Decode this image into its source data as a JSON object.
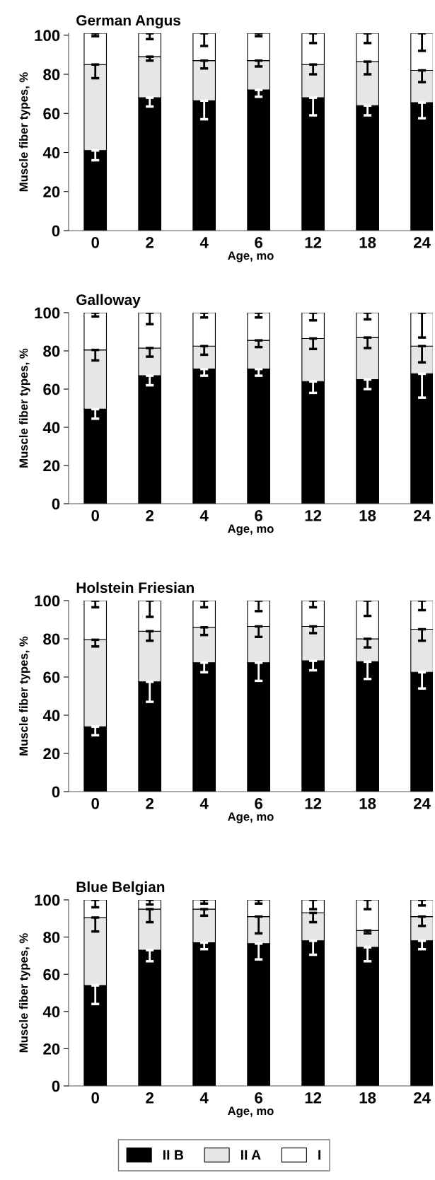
{
  "chart_data": [
    {
      "type": "bar",
      "title": "German Angus",
      "xlabel": "Age, mo",
      "ylabel": "Muscle fiber types, %",
      "categories": [
        "0",
        "2",
        "4",
        "6",
        "12",
        "18",
        "24"
      ],
      "stacked": true,
      "ylim": [
        0,
        101
      ],
      "yticks": [
        0,
        20,
        40,
        60,
        80,
        100
      ],
      "legend": "bottom",
      "series": [
        {
          "name": "II B",
          "color": "#000000",
          "values": [
            41,
            68,
            66.5,
            72,
            68,
            64,
            65.5
          ],
          "errors": [
            [
              36,
              41
            ],
            [
              63.5,
              68
            ],
            [
              57,
              66.5
            ],
            [
              68.5,
              72
            ],
            [
              59,
              68
            ],
            [
              59,
              64
            ],
            [
              57.5,
              65.5
            ]
          ]
        },
        {
          "name": "II A",
          "color": "#e6e6e6",
          "values": [
            44,
            21,
            20.5,
            15,
            17,
            22.5,
            16.5
          ],
          "errors": [
            [
              78,
              85
            ],
            [
              87,
              89
            ],
            [
              83,
              87
            ],
            [
              84,
              87
            ],
            [
              80,
              85
            ],
            [
              80,
              86.5
            ],
            [
              76,
              82
            ]
          ]
        },
        {
          "name": "I",
          "color": "#ffffff",
          "values": [
            16,
            12,
            14,
            14,
            16,
            14.5,
            19
          ],
          "errors": [
            [
              99.5,
              101
            ],
            [
              98,
              101
            ],
            [
              94.5,
              101
            ],
            [
              99.5,
              101
            ],
            [
              96,
              101
            ],
            [
              96,
              101
            ],
            [
              92,
              101
            ]
          ]
        }
      ]
    },
    {
      "type": "bar",
      "title": "Galloway",
      "xlabel": "Age, mo",
      "ylabel": "Muscle fiber types, %",
      "categories": [
        "0",
        "2",
        "4",
        "6",
        "12",
        "18",
        "24"
      ],
      "stacked": true,
      "ylim": [
        0,
        100
      ],
      "yticks": [
        0,
        20,
        40,
        60,
        80,
        100
      ],
      "series": [
        {
          "color": "#000000",
          "values": [
            49.5,
            67,
            70.5,
            70.5,
            64,
            65,
            68
          ],
          "errors": [
            [
              44.5,
              49.5
            ],
            [
              62,
              67
            ],
            [
              67,
              70.5
            ],
            [
              67,
              70.5
            ],
            [
              58,
              64
            ],
            [
              60,
              65
            ],
            [
              55.5,
              68
            ]
          ]
        },
        {
          "color": "#e6e6e6",
          "values": [
            31,
            14.5,
            12,
            15,
            22.5,
            22,
            14.5
          ],
          "errors": [
            [
              75,
              80.5
            ],
            [
              77,
              81.5
            ],
            [
              78,
              82.5
            ],
            [
              82,
              85.5
            ],
            [
              81,
              86.5
            ],
            [
              81.5,
              87
            ],
            [
              74,
              82.5
            ]
          ]
        },
        {
          "color": "#ffffff",
          "values": [
            19.5,
            18.5,
            17.5,
            14.5,
            13.5,
            13,
            17.5
          ],
          "errors": [
            [
              98,
              100
            ],
            [
              94,
              100
            ],
            [
              97.5,
              100
            ],
            [
              97.5,
              100
            ],
            [
              96,
              100
            ],
            [
              96.5,
              100
            ],
            [
              87,
              100
            ]
          ]
        }
      ]
    },
    {
      "type": "bar",
      "title": "Holstein Friesian",
      "xlabel": "Age, mo",
      "ylabel": "Muscle fiber types, %",
      "categories": [
        "0",
        "2",
        "4",
        "6",
        "12",
        "18",
        "24"
      ],
      "stacked": true,
      "ylim": [
        0,
        100
      ],
      "yticks": [
        0,
        20,
        40,
        60,
        80,
        100
      ],
      "series": [
        {
          "color": "#000000",
          "values": [
            34,
            57.5,
            67.5,
            67.5,
            68.5,
            68,
            62.5
          ],
          "errors": [
            [
              29.5,
              34
            ],
            [
              47,
              57.5
            ],
            [
              62.5,
              67.5
            ],
            [
              58,
              67.5
            ],
            [
              63.5,
              68.5
            ],
            [
              59,
              68
            ],
            [
              54,
              62.5
            ]
          ]
        },
        {
          "color": "#e6e6e6",
          "values": [
            45.5,
            26.5,
            18.5,
            19,
            18,
            12,
            22.5
          ],
          "errors": [
            [
              76,
              79.5
            ],
            [
              79,
              84
            ],
            [
              82,
              86
            ],
            [
              81,
              86.5
            ],
            [
              83,
              86.5
            ],
            [
              75.5,
              80
            ],
            [
              79,
              85
            ]
          ]
        },
        {
          "color": "#ffffff",
          "values": [
            20.5,
            16,
            14,
            13.5,
            13.5,
            20,
            15
          ],
          "errors": [
            [
              96.5,
              100
            ],
            [
              91.5,
              100
            ],
            [
              96.5,
              100
            ],
            [
              94.5,
              100
            ],
            [
              96.5,
              100
            ],
            [
              92,
              100
            ],
            [
              95,
              100
            ]
          ]
        }
      ]
    },
    {
      "type": "bar",
      "title": "Blue Belgian",
      "xlabel": "Age, mo",
      "ylabel": "Muscle fiber types, %",
      "categories": [
        "0",
        "2",
        "4",
        "6",
        "12",
        "18",
        "24"
      ],
      "stacked": true,
      "ylim": [
        0,
        100
      ],
      "yticks": [
        0,
        20,
        40,
        60,
        80,
        100
      ],
      "series": [
        {
          "color": "#000000",
          "values": [
            54,
            73,
            77,
            76.5,
            78,
            74.5,
            78
          ],
          "errors": [
            [
              44,
              54
            ],
            [
              67,
              73
            ],
            [
              73.5,
              77
            ],
            [
              68,
              76.5
            ],
            [
              70.5,
              78
            ],
            [
              67,
              74.5
            ],
            [
              73.5,
              78
            ]
          ]
        },
        {
          "color": "#e6e6e6",
          "values": [
            36.5,
            22,
            18,
            14.5,
            15,
            9,
            13
          ],
          "errors": [
            [
              83,
              90.5
            ],
            [
              88,
              95
            ],
            [
              91.5,
              95
            ],
            [
              82,
              91
            ],
            [
              88,
              93
            ],
            [
              82,
              83.5
            ],
            [
              86,
              91
            ]
          ]
        },
        {
          "color": "#ffffff",
          "values": [
            9.5,
            5,
            5,
            9,
            7,
            16.5,
            9
          ],
          "errors": [
            [
              96,
              100
            ],
            [
              97.5,
              100
            ],
            [
              98,
              100
            ],
            [
              98,
              100
            ],
            [
              95,
              100
            ],
            [
              95,
              100
            ],
            [
              97,
              100
            ]
          ]
        }
      ]
    }
  ]
}
